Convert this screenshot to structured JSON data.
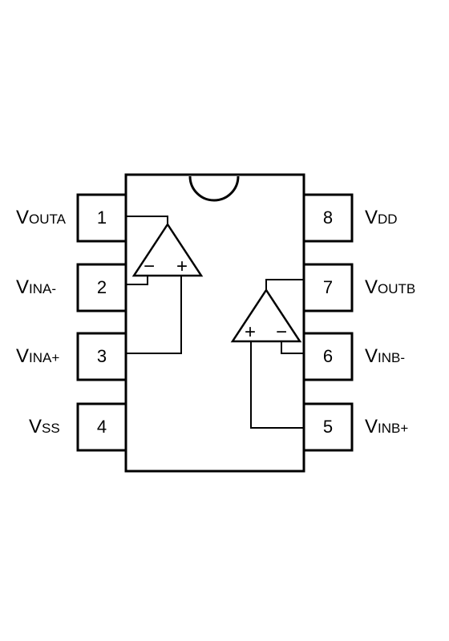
{
  "pins": [
    {
      "number": "1",
      "label_main": "V",
      "label_sub": "OUTA"
    },
    {
      "number": "2",
      "label_main": "V",
      "label_sub": "INA-"
    },
    {
      "number": "3",
      "label_main": "V",
      "label_sub": "INA+"
    },
    {
      "number": "4",
      "label_main": "V",
      "label_sub": "SS"
    },
    {
      "number": "5",
      "label_main": "V",
      "label_sub": "INB+"
    },
    {
      "number": "6",
      "label_main": "V",
      "label_sub": "INB-"
    },
    {
      "number": "7",
      "label_main": "V",
      "label_sub": "OUTB"
    },
    {
      "number": "8",
      "label_main": "V",
      "label_sub": "DD"
    }
  ],
  "opamp_a": {
    "inverting_sign": "−",
    "noninverting_sign": "+"
  },
  "opamp_b": {
    "noninverting_sign": "+",
    "inverting_sign": "−"
  },
  "colors": {
    "stroke": "#000000",
    "background": "#ffffff"
  }
}
